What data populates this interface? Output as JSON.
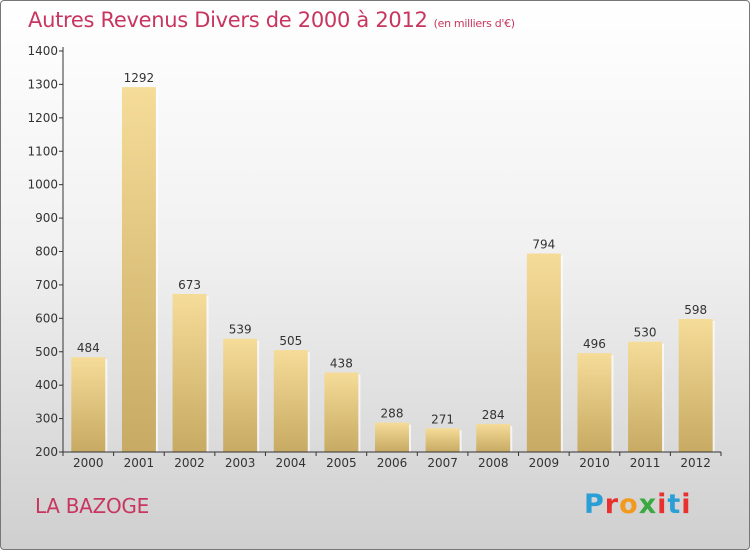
{
  "header": {
    "title": "Autres Revenus Divers de 2000 à 2012",
    "subtitle": "(en milliers d'€)"
  },
  "footer": {
    "location": "LA BAZOGE",
    "logo_letters": [
      "P",
      "r",
      "o",
      "x",
      "i",
      "t",
      "i"
    ],
    "logo_colors": [
      "#2a9fd6",
      "#e8302f",
      "#f29a1d",
      "#3aa93f",
      "#e8302f",
      "#2a9fd6",
      "#e8302f"
    ]
  },
  "colors": {
    "bar_light": "#f5dc98",
    "bar_dark": "#c7aa63",
    "title": "#c8365f",
    "axis": "#333333"
  },
  "chart_data": {
    "type": "bar",
    "title": "Autres Revenus Divers de 2000 à 2012",
    "subtitle": "(en milliers d'€)",
    "xlabel": "",
    "ylabel": "",
    "categories": [
      "2000",
      "2001",
      "2002",
      "2003",
      "2004",
      "2005",
      "2006",
      "2007",
      "2008",
      "2009",
      "2010",
      "2011",
      "2012"
    ],
    "values": [
      484,
      1292,
      673,
      539,
      505,
      438,
      288,
      271,
      284,
      794,
      496,
      530,
      598
    ],
    "value_labels": [
      "484",
      "1292",
      "673",
      "539",
      "505",
      "438",
      "288",
      "271",
      "284",
      "794",
      "496",
      "530",
      "598"
    ],
    "ylim": [
      200,
      1400
    ],
    "yticks": [
      200,
      300,
      400,
      500,
      600,
      700,
      800,
      900,
      1000,
      1100,
      1200,
      1300,
      1400
    ],
    "ytick_labels": [
      "200",
      "300",
      "400",
      "500",
      "600",
      "700",
      "800",
      "900",
      "1000",
      "1100",
      "1200",
      "1300",
      "1400"
    ],
    "grid": false,
    "legend": "none"
  }
}
